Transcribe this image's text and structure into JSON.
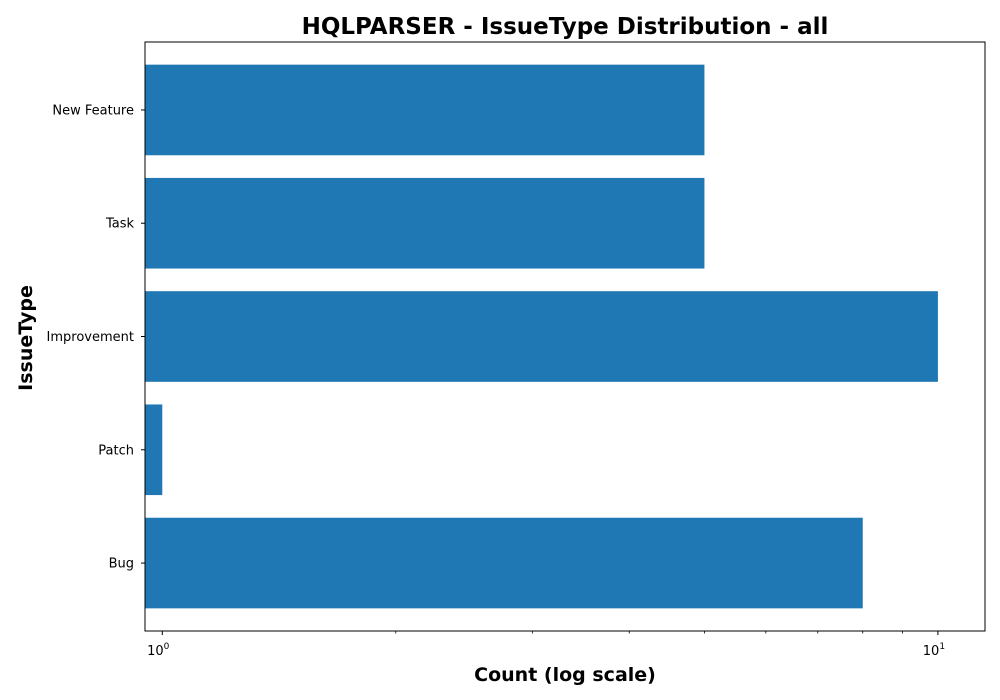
{
  "chart_data": {
    "type": "bar",
    "orientation": "horizontal",
    "title": "HQLPARSER - IssueType Distribution - all",
    "xlabel": "Count (log scale)",
    "ylabel": "IssueType",
    "x_scale": "log",
    "xlim": [
      0.95,
      11.5
    ],
    "x_major_ticks": [
      {
        "value": 1,
        "base": "10",
        "exponent": "0"
      },
      {
        "value": 10,
        "base": "10",
        "exponent": "1"
      }
    ],
    "categories": [
      "Bug",
      "Patch",
      "Improvement",
      "Task",
      "New Feature"
    ],
    "values": [
      8,
      1,
      10,
      5,
      5
    ],
    "bar_color": "#1f77b4",
    "grid": false,
    "legend": "none"
  }
}
